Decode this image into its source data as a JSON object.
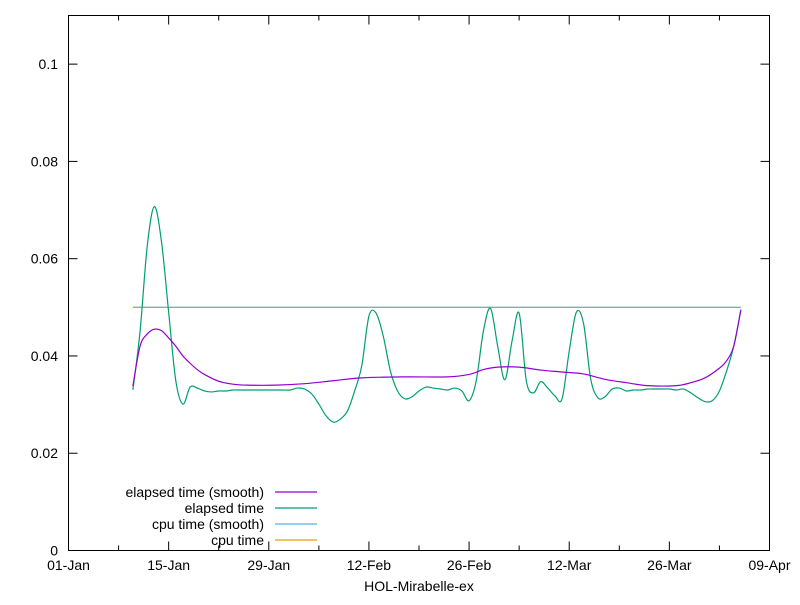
{
  "chart_data": {
    "type": "line",
    "title": "",
    "xlabel": "HOL-Mirabelle-ex",
    "ylabel": "",
    "xlim": [
      "01-01",
      "04-09"
    ],
    "ylim": [
      0,
      0.11
    ],
    "x_ticks": [
      "01-Jan",
      "15-Jan",
      "29-Jan",
      "12-Feb",
      "26-Feb",
      "12-Mar",
      "26-Mar",
      "09-Apr"
    ],
    "y_ticks": [
      "0",
      "0.02",
      "0.04",
      "0.06",
      "0.08",
      "0.1"
    ],
    "y_tick_values": [
      0,
      0.02,
      0.04,
      0.06,
      0.08,
      0.1
    ],
    "grid": false,
    "legend_placement": "bottom-left",
    "series": [
      {
        "name": "elapsed time (smooth)",
        "color": "#9400d3",
        "x": [
          "01-10",
          "01-11",
          "01-12",
          "01-13",
          "01-14",
          "01-15",
          "01-16",
          "01-17",
          "01-18",
          "01-19",
          "01-20",
          "01-22",
          "01-24",
          "01-26",
          "01-30",
          "02-03",
          "02-07",
          "02-11",
          "02-17",
          "02-23",
          "02-26",
          "02-28",
          "03-02",
          "03-05",
          "03-08",
          "03-11",
          "03-14",
          "03-17",
          "03-20",
          "03-23",
          "03-27",
          "03-29",
          "03-31",
          "04-02",
          "04-03",
          "04-04",
          "04-05"
        ],
        "values": [
          0.0338,
          0.042,
          0.0445,
          0.0455,
          0.0452,
          0.0437,
          0.042,
          0.04,
          0.0385,
          0.0372,
          0.0362,
          0.0348,
          0.0342,
          0.034,
          0.034,
          0.0343,
          0.0349,
          0.0355,
          0.0357,
          0.0357,
          0.0362,
          0.0372,
          0.0377,
          0.0377,
          0.0371,
          0.0367,
          0.0363,
          0.0352,
          0.0345,
          0.0339,
          0.0339,
          0.0345,
          0.0355,
          0.0375,
          0.039,
          0.042,
          0.0495
        ]
      },
      {
        "name": "elapsed time",
        "color": "#009e73",
        "x": [
          "01-10",
          "01-11",
          "01-12",
          "01-13",
          "01-14",
          "01-15",
          "01-16",
          "01-17",
          "01-18",
          "01-19",
          "01-20",
          "01-21",
          "01-22",
          "01-23",
          "01-24",
          "01-25",
          "01-26",
          "01-27",
          "01-28",
          "01-29",
          "01-30",
          "01-31",
          "02-01",
          "02-02",
          "02-03",
          "02-04",
          "02-05",
          "02-06",
          "02-07",
          "02-08",
          "02-09",
          "02-10",
          "02-11",
          "02-12",
          "02-13",
          "02-14",
          "02-15",
          "02-16",
          "02-17",
          "02-18",
          "02-19",
          "02-20",
          "02-21",
          "02-22",
          "02-23",
          "02-24",
          "02-25",
          "02-26",
          "02-27",
          "02-28",
          "03-01",
          "03-02",
          "03-03",
          "03-04",
          "03-05",
          "03-06",
          "03-07",
          "03-08",
          "03-09",
          "03-10",
          "03-11",
          "03-12",
          "03-13",
          "03-14",
          "03-15",
          "03-16",
          "03-17",
          "03-18",
          "03-19",
          "03-20",
          "03-21",
          "03-22",
          "03-23",
          "03-24",
          "03-25",
          "03-26",
          "03-27",
          "03-28",
          "03-29",
          "03-30",
          "03-31",
          "04-01",
          "04-02",
          "04-03",
          "04-04",
          "04-05"
        ],
        "values": [
          0.033,
          0.045,
          0.0625,
          0.0707,
          0.0635,
          0.049,
          0.0349,
          0.0301,
          0.0336,
          0.0334,
          0.0328,
          0.0326,
          0.0328,
          0.0328,
          0.033,
          0.033,
          0.033,
          0.033,
          0.033,
          0.033,
          0.033,
          0.033,
          0.033,
          0.0334,
          0.0332,
          0.0322,
          0.0301,
          0.0277,
          0.0264,
          0.027,
          0.0287,
          0.0328,
          0.038,
          0.0482,
          0.0488,
          0.0441,
          0.0369,
          0.0328,
          0.0312,
          0.0316,
          0.0328,
          0.0336,
          0.0334,
          0.0332,
          0.033,
          0.0334,
          0.0328,
          0.0308,
          0.0349,
          0.0451,
          0.0498,
          0.042,
          0.0351,
          0.043,
          0.0488,
          0.0349,
          0.0324,
          0.0347,
          0.0334,
          0.0318,
          0.0312,
          0.041,
          0.049,
          0.0467,
          0.0353,
          0.0314,
          0.0316,
          0.0332,
          0.0334,
          0.0328,
          0.033,
          0.033,
          0.0332,
          0.0332,
          0.0332,
          0.0332,
          0.033,
          0.0332,
          0.0324,
          0.0314,
          0.0306,
          0.0308,
          0.0328,
          0.0369,
          0.042,
          0.0495
        ]
      },
      {
        "name": "cpu time (smooth)",
        "color": "#56b4e9",
        "x": [
          "01-10",
          "04-05"
        ],
        "values": [
          0.05,
          0.05
        ]
      },
      {
        "name": "cpu time",
        "color": "#e69f00",
        "x": [
          "01-10",
          "04-05"
        ],
        "values": [
          0.05,
          0.05
        ]
      }
    ]
  }
}
